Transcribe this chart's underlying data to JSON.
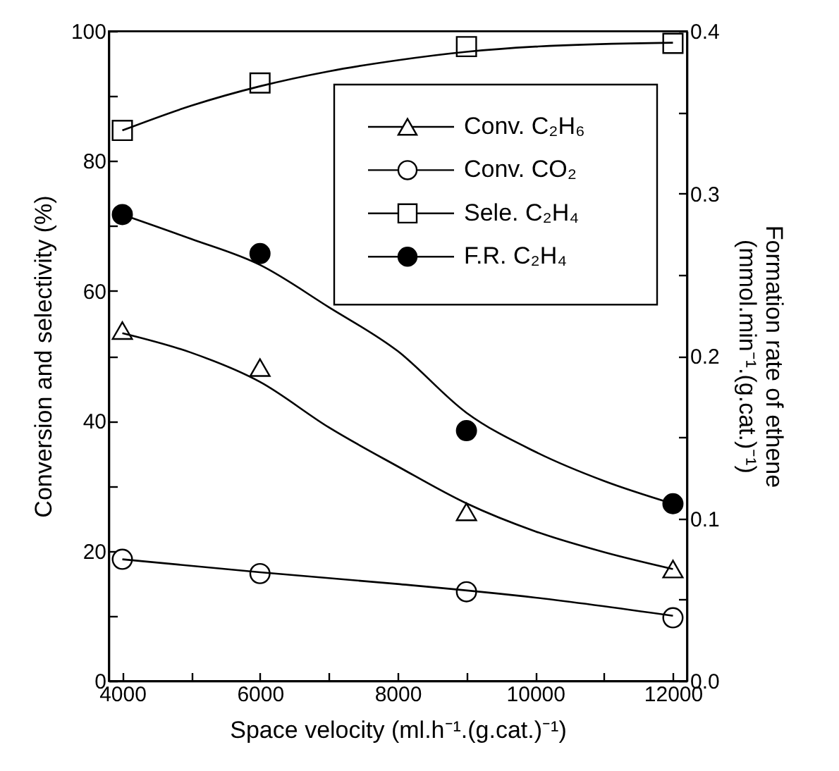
{
  "chart_data": {
    "type": "scatter",
    "xlabel": "Space velocity (ml.h⁻¹.(g.cat.)⁻¹)",
    "ylabel": "Conversion and selectivity (%)",
    "y2label": "Formation rate of ethene\n(mmol.min⁻¹.(g.cat.)⁻¹)",
    "x": [
      4000,
      6000,
      9000,
      12000
    ],
    "xlim": [
      3800,
      12200
    ],
    "xticks": [
      4000,
      {
        "value": 5000,
        "label": null
      },
      6000,
      {
        "value": 7000,
        "label": null
      },
      8000,
      {
        "value": 9000,
        "label": null
      },
      10000,
      {
        "value": 11000,
        "label": null
      },
      12000
    ],
    "ylim": [
      0,
      100
    ],
    "yticks": [
      0,
      {
        "value": 10,
        "label": null
      },
      20,
      {
        "value": 30,
        "label": null
      },
      40,
      {
        "value": 50,
        "label": null
      },
      60,
      {
        "value": 70,
        "label": null
      },
      80,
      {
        "value": 90,
        "label": null
      },
      100
    ],
    "y2lim": [
      0,
      0.4
    ],
    "y2ticks": [
      {
        "value": 0,
        "label": "0.0"
      },
      {
        "value": 0.05,
        "label": null
      },
      0.1,
      {
        "value": 0.15,
        "label": null
      },
      0.2,
      {
        "value": 0.25,
        "label": null
      },
      0.3,
      {
        "value": 0.35,
        "label": null
      },
      0.4
    ],
    "legend": "top right",
    "grid": false,
    "series": [
      {
        "name": "Conv. C₂H₆",
        "type": "scatter",
        "marker": "triangle",
        "color": "#ffffff",
        "values": [
          53.9,
          48.2,
          26.0,
          17.2
        ]
      },
      {
        "name": "Conv. CO₂",
        "type": "scatter",
        "marker": "circle",
        "color": "#ffffff",
        "values": [
          18.7,
          16.5,
          13.7,
          9.7
        ]
      },
      {
        "name": "Sele. C₂H₄",
        "type": "scatter",
        "marker": "square",
        "color": "#ffffff",
        "values": [
          84.7,
          92.0,
          97.6,
          98.1
        ]
      },
      {
        "name": "F.R.  C₂H₄",
        "type": "scatter",
        "marker": "circle",
        "color": "#000000",
        "axis": "y2",
        "values": [
          0.287,
          0.263,
          0.154,
          0.109
        ]
      },
      {
        "type": "line",
        "marker": "none",
        "color": "#000000",
        "x": [
          4000,
          5000,
          6000,
          7000,
          8000,
          9000,
          10000,
          11000,
          12000
        ],
        "values": [
          53.5,
          50.5,
          46,
          39,
          33,
          27.3,
          23,
          19.8,
          17.2
        ]
      },
      {
        "type": "line",
        "marker": "none",
        "color": "#000000",
        "x": [
          4000,
          6000,
          8000,
          10000,
          12000
        ],
        "values": [
          18.7,
          16.7,
          14.9,
          12.8,
          10
        ]
      },
      {
        "type": "line",
        "marker": "none",
        "color": "#000000",
        "x": [
          4000,
          5000,
          6000,
          7000,
          8000,
          9000,
          10000,
          12000
        ],
        "values": [
          84.7,
          88.5,
          91.5,
          93.8,
          95.5,
          96.8,
          97.6,
          98.2
        ]
      },
      {
        "type": "line",
        "marker": "none",
        "color": "#000000",
        "axis": "y2",
        "x": [
          4000,
          5000,
          6000,
          7000,
          8000,
          9000,
          10000,
          11000,
          12000
        ],
        "values": [
          0.287,
          0.272,
          0.256,
          0.23,
          0.203,
          0.165,
          0.141,
          0.123,
          0.109
        ]
      }
    ]
  }
}
